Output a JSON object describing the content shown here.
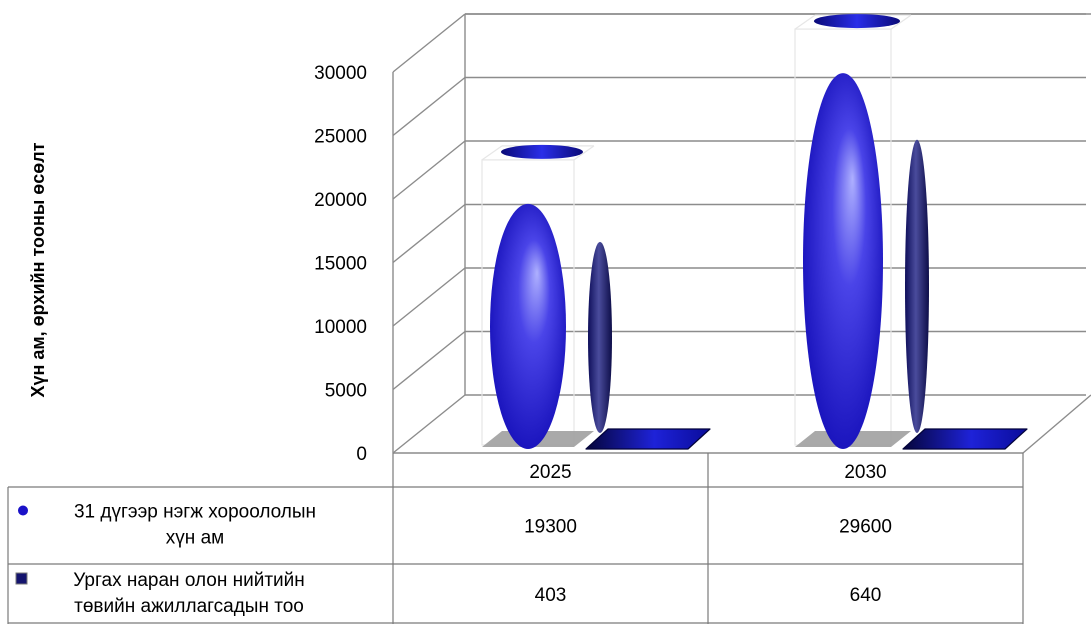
{
  "chart_data": {
    "type": "bar",
    "subtype": "3d-cylinder-with-data-table",
    "title": "",
    "ylabel": "Хүн ам, өрхийн тооны өсөлт",
    "xlabel": "",
    "categories": [
      "2025",
      "2030"
    ],
    "ylim": [
      0,
      30000
    ],
    "yticks": [
      "0",
      "5000",
      "10000",
      "15000",
      "20000",
      "25000",
      "30000"
    ],
    "grid": true,
    "legend": "data-table-left",
    "series": [
      {
        "name": "31 дүгээр нэгж хороололын хүн ам",
        "name_lines": [
          "31 дүгээр нэгж хороололын",
          "хүн ам"
        ],
        "values": [
          19300,
          29600
        ],
        "display": [
          "19300",
          "29600"
        ],
        "color": "#1a12c8",
        "marker": "circle"
      },
      {
        "name": "Ургах наран олон нийтийн төвийн ажиллагсадын тоо",
        "name_lines": [
          "Ургах наран олон нийтийн",
          "төвийн ажиллагсадын тоо"
        ],
        "values": [
          403,
          640
        ],
        "display": [
          "403",
          "640"
        ],
        "color": "#14146e",
        "marker": "square"
      }
    ]
  }
}
